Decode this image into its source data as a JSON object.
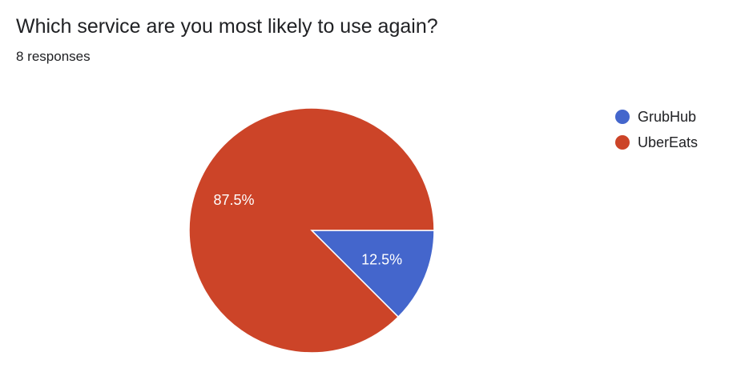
{
  "header": {
    "title": "Which service are you most likely to use again?",
    "subtitle": "8 responses"
  },
  "chart_data": {
    "type": "pie",
    "title": "Which service are you most likely to use again?",
    "categories": [
      "GrubHub",
      "UberEats"
    ],
    "values": [
      12.5,
      87.5
    ],
    "labels": [
      "12.5%",
      "87.5%"
    ],
    "colors": [
      "#4466cc",
      "#cc4428"
    ],
    "legend_position": "right"
  }
}
